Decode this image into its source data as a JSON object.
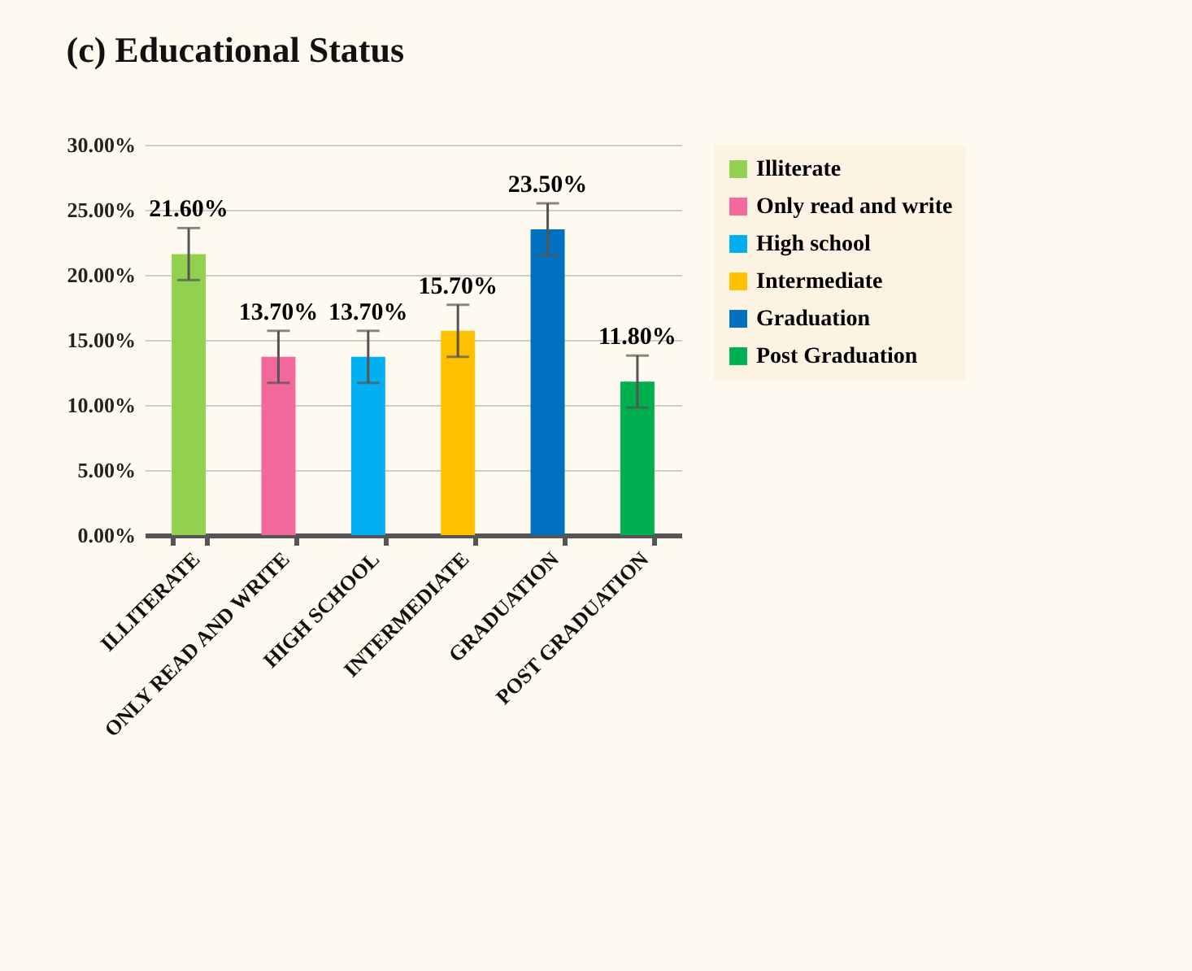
{
  "chart_data": {
    "type": "bar",
    "title": "(c) Educational Status",
    "categories": [
      "ILLITERATE",
      "ONLY READ AND WRITE",
      "HIGH SCHOOL",
      "INTERMEDIATE",
      "GRADUATION",
      "POST GRADUATION"
    ],
    "series": [
      {
        "name": "Illiterate",
        "color": "#92d050",
        "values": [
          21.6,
          null,
          null,
          null,
          null,
          null
        ],
        "errors": [
          2,
          null,
          null,
          null,
          null,
          null
        ],
        "value_labels": [
          "21.60%",
          null,
          null,
          null,
          null,
          null
        ]
      },
      {
        "name": "Only read and write",
        "color": "#f4679a",
        "values": [
          null,
          13.7,
          null,
          null,
          null,
          null
        ],
        "errors": [
          null,
          2,
          null,
          null,
          null,
          null
        ],
        "value_labels": [
          null,
          "13.70%",
          null,
          null,
          null,
          null
        ]
      },
      {
        "name": "High school",
        "color": "#00b0f0",
        "values": [
          null,
          null,
          13.7,
          null,
          null,
          null
        ],
        "errors": [
          null,
          null,
          2,
          null,
          null,
          null
        ],
        "value_labels": [
          null,
          null,
          "13.70%",
          null,
          null,
          null
        ]
      },
      {
        "name": "Intermediate",
        "color": "#ffc000",
        "values": [
          null,
          null,
          null,
          15.7,
          null,
          null
        ],
        "errors": [
          null,
          null,
          null,
          2,
          null,
          null
        ],
        "value_labels": [
          null,
          null,
          null,
          "15.70%",
          null,
          null
        ]
      },
      {
        "name": "Graduation",
        "color": "#0070c0",
        "values": [
          null,
          null,
          null,
          null,
          23.5,
          null
        ],
        "errors": [
          null,
          null,
          null,
          null,
          2,
          null
        ],
        "value_labels": [
          null,
          null,
          null,
          null,
          "23.50%",
          null
        ]
      },
      {
        "name": "Post Graduation",
        "color": "#00b050",
        "values": [
          null,
          null,
          null,
          null,
          null,
          11.8
        ],
        "errors": [
          null,
          null,
          null,
          null,
          null,
          2
        ],
        "value_labels": [
          null,
          null,
          null,
          null,
          null,
          "11.80%"
        ]
      }
    ],
    "ylim": [
      0,
      30
    ],
    "yticks": [
      {
        "value": 0,
        "label": "0.00%"
      },
      {
        "value": 5,
        "label": "5.00%"
      },
      {
        "value": 10,
        "label": "10.00%"
      },
      {
        "value": 15,
        "label": "15.00%"
      },
      {
        "value": 20,
        "label": "20.00%"
      },
      {
        "value": 25,
        "label": "25.00%"
      },
      {
        "value": 30,
        "label": "30.00%"
      }
    ],
    "grid": "y",
    "legend": "top right"
  }
}
